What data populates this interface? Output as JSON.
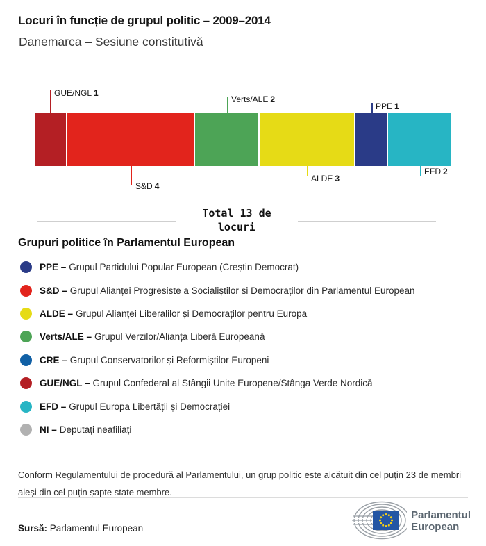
{
  "header": {
    "title": "Locuri în funcție de grupul politic – 2009–2014",
    "subtitle": "Danemarca – Sesiune constitutivă"
  },
  "chart_data": {
    "type": "bar",
    "variant": "horizontal-stacked",
    "title": "Locuri în funcție de grupul politic – 2009–2014",
    "subtitle": "Danemarca – Sesiune constitutivă",
    "total_seats": 13,
    "total_label": "Total 13 de locuri",
    "segments": [
      {
        "group": "GUE/NGL",
        "seats": 1,
        "color": "#b41f24",
        "label_position": "above"
      },
      {
        "group": "S&D",
        "seats": 4,
        "color": "#e2241c",
        "label_position": "below"
      },
      {
        "group": "Verts/ALE",
        "seats": 2,
        "color": "#4da456",
        "label_position": "above"
      },
      {
        "group": "ALDE",
        "seats": 3,
        "color": "#e6db16",
        "label_position": "below"
      },
      {
        "group": "PPE",
        "seats": 1,
        "color": "#2a3b87",
        "label_position": "above"
      },
      {
        "group": "EFD",
        "seats": 2,
        "color": "#27b5c4",
        "label_position": "below"
      }
    ]
  },
  "legend": {
    "heading": "Grupuri politice în Parlamentul European",
    "items": [
      {
        "abbr": "PPE –",
        "desc": "Grupul Partidului Popular European (Creștin Democrat)",
        "color": "#2a3b87"
      },
      {
        "abbr": "S&D –",
        "desc": "Grupul Alianței Progresiste a Socialiștilor si Democraților din Parlamentul European",
        "color": "#e2241c"
      },
      {
        "abbr": "ALDE –",
        "desc": "Grupul Alianței Liberalilor și Democraților pentru Europa",
        "color": "#e6db16"
      },
      {
        "abbr": "Verts/ALE –",
        "desc": "Grupul Verzilor/Alianța Liberă Europeană",
        "color": "#4da456"
      },
      {
        "abbr": "CRE –",
        "desc": "Grupul Conservatorilor și Reformiștilor Europeni",
        "color": "#1160a5"
      },
      {
        "abbr": "GUE/NGL –",
        "desc": "Grupul Confederal al Stângii Unite Europene/Stânga Verde Nordică",
        "color": "#b41f24"
      },
      {
        "abbr": "EFD –",
        "desc": "Grupul Europa Libertății și Democrației",
        "color": "#27b5c4"
      },
      {
        "abbr": "NI –",
        "desc": "Deputați neafiliați",
        "color": "#b1b1b1"
      }
    ]
  },
  "footer": {
    "footnote": "Conform Regulamentului de procedură al Parlamentului, un grup politic este alcătuit din cel puțin 23 de membri aleși din cel puțin șapte state membre.",
    "source_label": "Sursă:",
    "source_value": "Parlamentul European",
    "logo_line1": "Parlamentul",
    "logo_line2": "European",
    "logo_colors": {
      "arcs": "#9aa0a6",
      "flag": "#2456a4",
      "stars": "#f7d117",
      "text": "#5b6670"
    }
  }
}
